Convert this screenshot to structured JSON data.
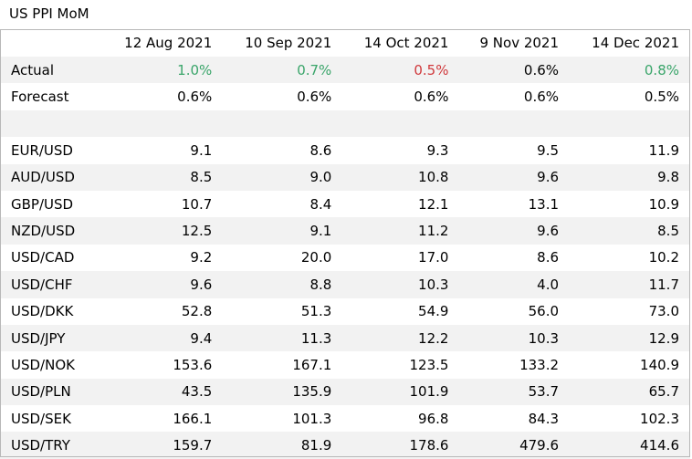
{
  "title": "US PPI MoM",
  "columns": [
    "12 Aug 2021",
    "10 Sep 2021",
    "14 Oct 2021",
    "9 Nov 2021",
    "14 Dec 2021"
  ],
  "actual": {
    "label": "Actual",
    "values": [
      "1.0%",
      "0.7%",
      "0.5%",
      "0.6%",
      "0.8%"
    ],
    "colors": [
      "pos",
      "pos",
      "neg",
      "neutral",
      "pos"
    ],
    "palette": {
      "pos": "#3aa56a",
      "neg": "#d0393c",
      "neutral": "#000000"
    }
  },
  "forecast": {
    "label": "Forecast",
    "values": [
      "0.6%",
      "0.6%",
      "0.6%",
      "0.6%",
      "0.5%"
    ]
  },
  "pairs": [
    {
      "name": "EUR/USD",
      "values": [
        "9.1",
        "8.6",
        "9.3",
        "9.5",
        "11.9"
      ]
    },
    {
      "name": "AUD/USD",
      "values": [
        "8.5",
        "9.0",
        "10.8",
        "9.6",
        "9.8"
      ]
    },
    {
      "name": "GBP/USD",
      "values": [
        "10.7",
        "8.4",
        "12.1",
        "13.1",
        "10.9"
      ]
    },
    {
      "name": "NZD/USD",
      "values": [
        "12.5",
        "9.1",
        "11.2",
        "9.6",
        "8.5"
      ]
    },
    {
      "name": "USD/CAD",
      "values": [
        "9.2",
        "20.0",
        "17.0",
        "8.6",
        "10.2"
      ]
    },
    {
      "name": "USD/CHF",
      "values": [
        "9.6",
        "8.8",
        "10.3",
        "4.0",
        "11.7"
      ]
    },
    {
      "name": "USD/DKK",
      "values": [
        "52.8",
        "51.3",
        "54.9",
        "56.0",
        "73.0"
      ]
    },
    {
      "name": "USD/JPY",
      "values": [
        "9.4",
        "11.3",
        "12.2",
        "10.3",
        "12.9"
      ]
    },
    {
      "name": "USD/NOK",
      "values": [
        "153.6",
        "167.1",
        "123.5",
        "133.2",
        "140.9"
      ]
    },
    {
      "name": "USD/PLN",
      "values": [
        "43.5",
        "135.9",
        "101.9",
        "53.7",
        "65.7"
      ]
    },
    {
      "name": "USD/SEK",
      "values": [
        "166.1",
        "101.3",
        "96.8",
        "84.3",
        "102.3"
      ]
    },
    {
      "name": "USD/TRY",
      "values": [
        "159.7",
        "81.9",
        "178.6",
        "479.6",
        "414.6"
      ]
    }
  ]
}
